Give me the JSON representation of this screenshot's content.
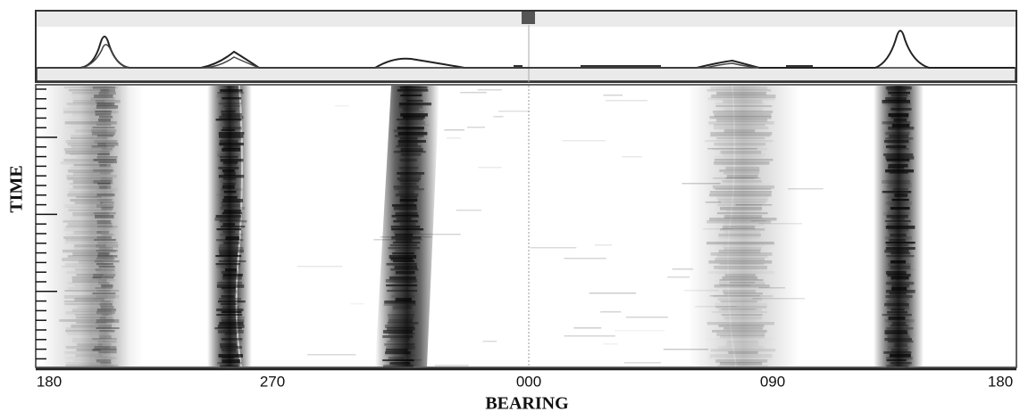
{
  "y_axis_label": "TIME",
  "x_axis_label": "BEARING",
  "x_tick_labels": [
    "180",
    "270",
    "000",
    "090",
    "180"
  ]
}
